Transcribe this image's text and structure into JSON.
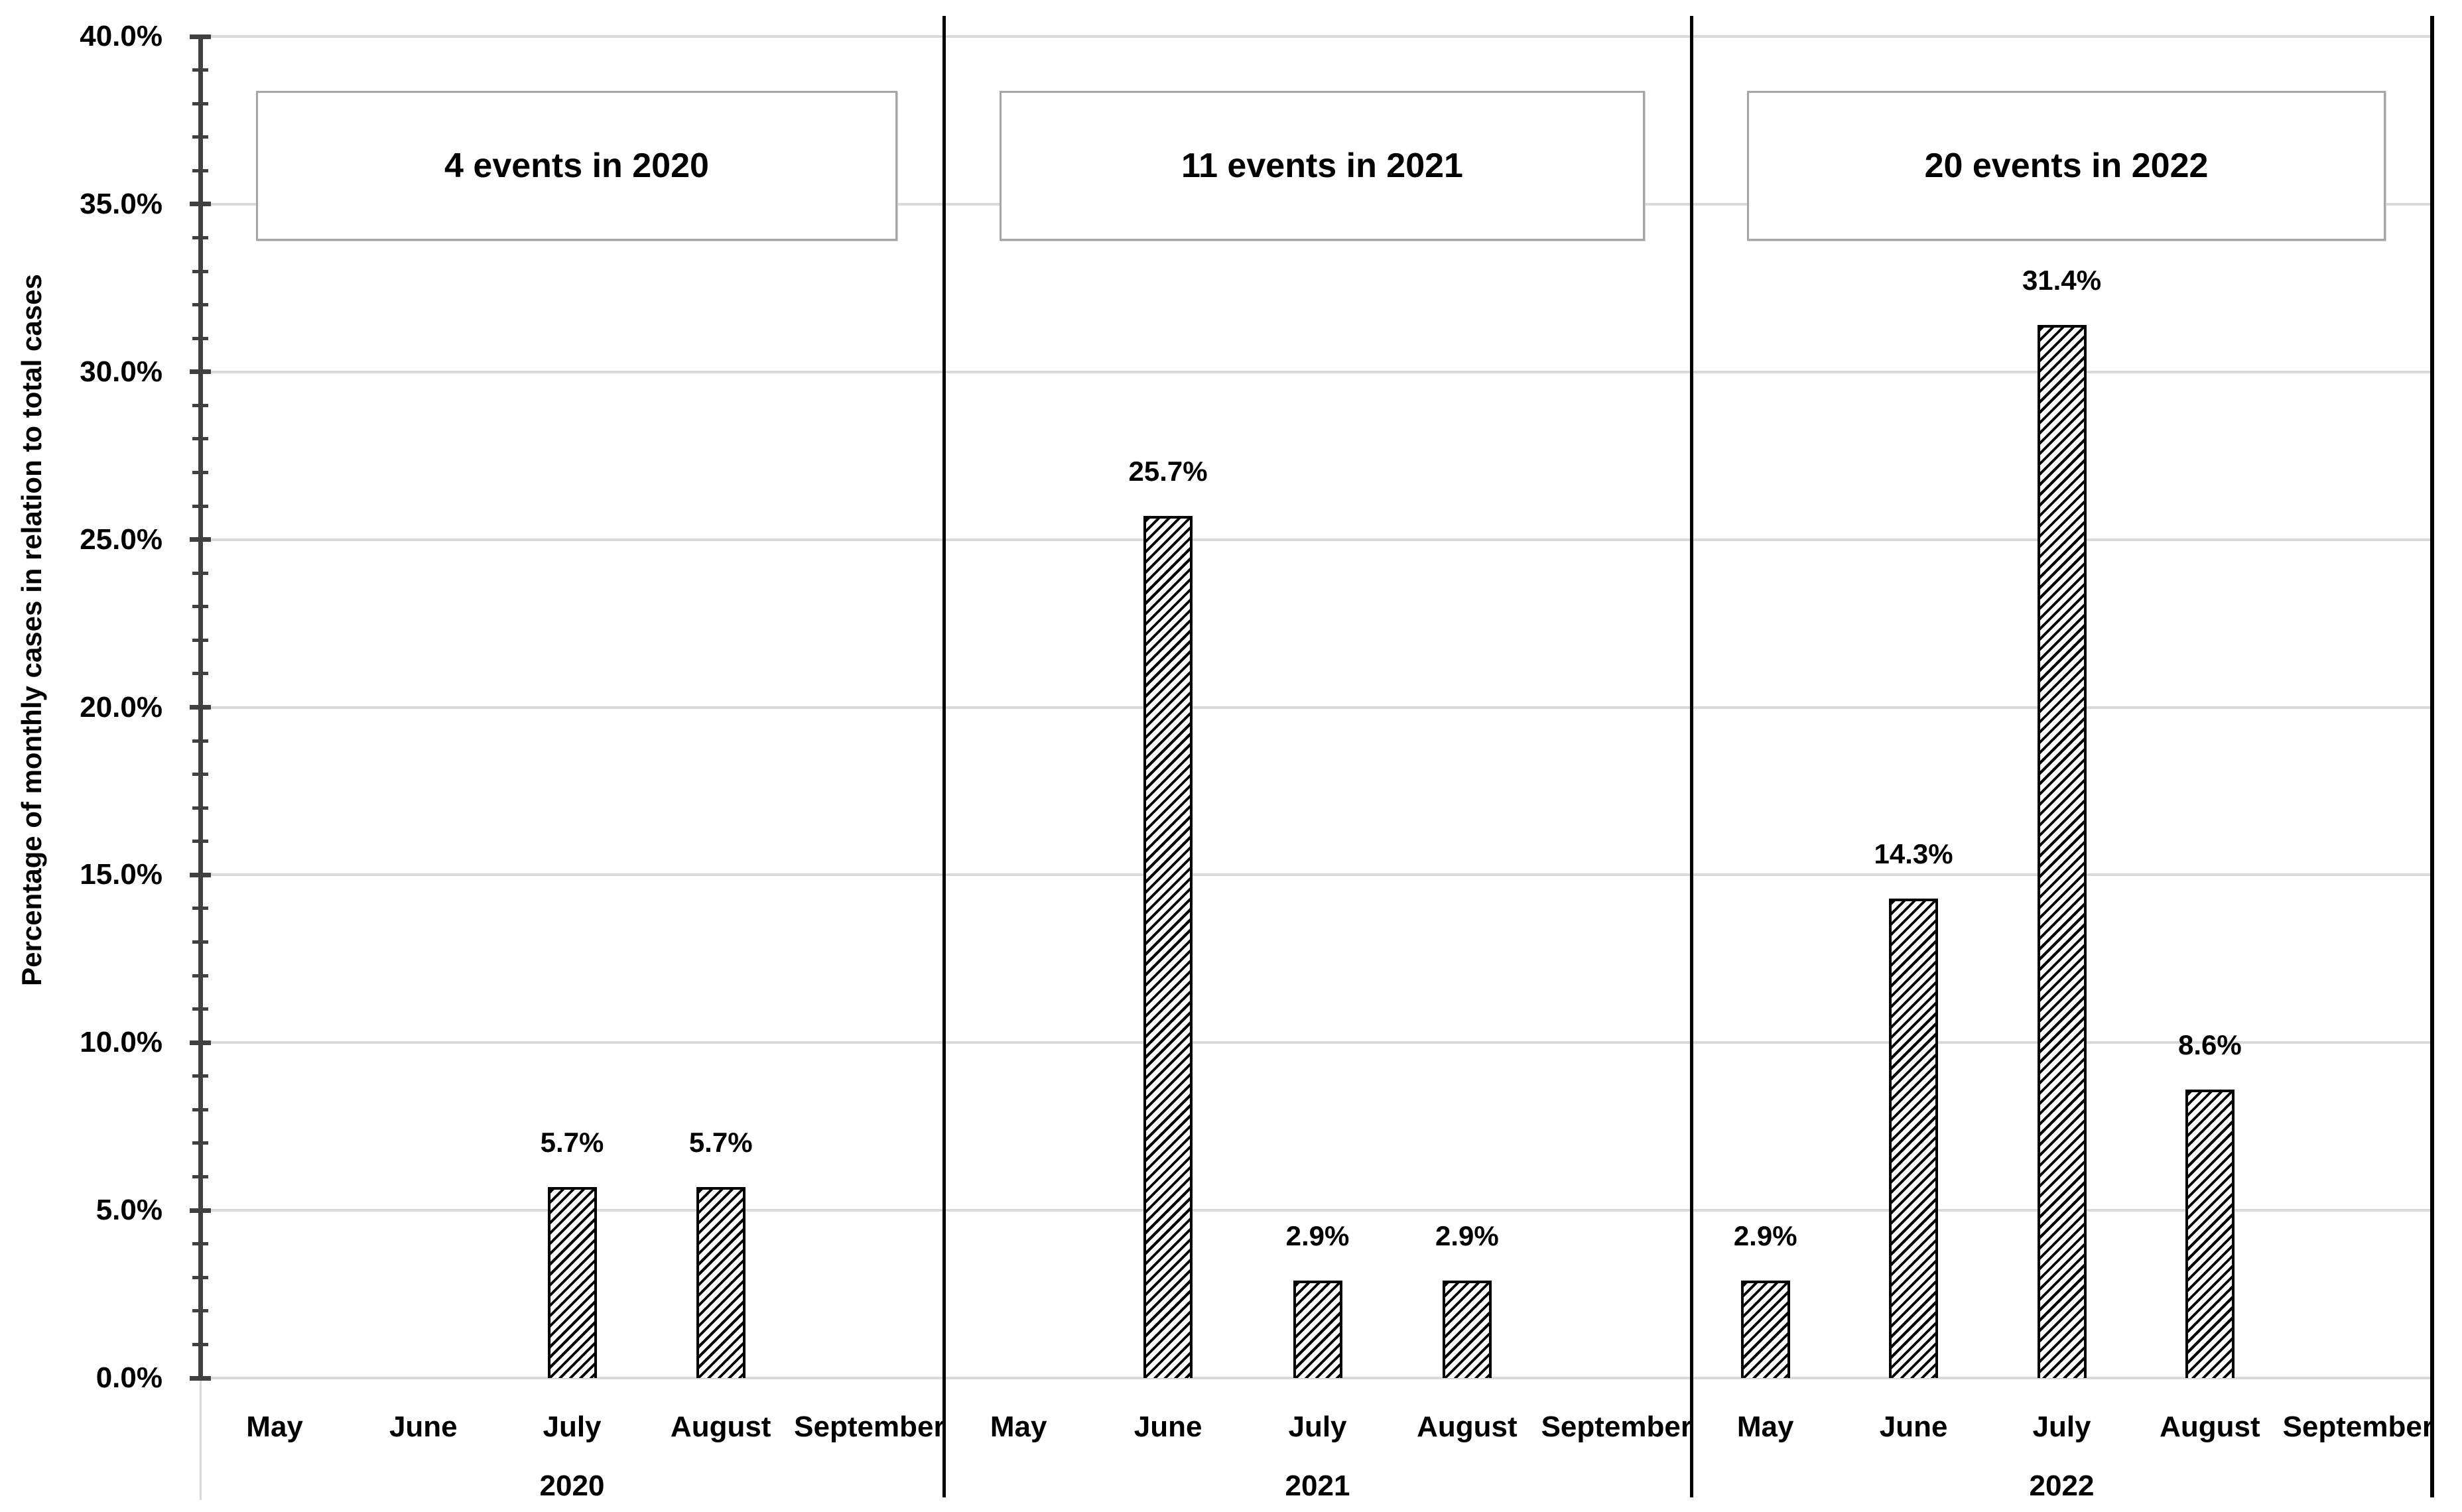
{
  "chart_data": {
    "type": "bar",
    "title": "",
    "xlabel": "",
    "ylabel": "Percentage of monthly cases in relation to total cases",
    "ylim": [
      0,
      40
    ],
    "y_major_step_pct": 5,
    "y_minor_step_pct": 1,
    "y_tick_labels": [
      "0.0%",
      "5.0%",
      "10.0%",
      "15.0%",
      "20.0%",
      "25.0%",
      "30.0%",
      "35.0%",
      "40.0%"
    ],
    "categories": [
      "May",
      "June",
      "July",
      "August",
      "September"
    ],
    "series": [
      {
        "name": "2020",
        "annotation": "4 events in 2020",
        "values": [
          0,
          0,
          5.7,
          5.7,
          0
        ],
        "data_labels": [
          "",
          "",
          "5.7%",
          "5.7%",
          ""
        ]
      },
      {
        "name": "2021",
        "annotation": "11 events in 2021",
        "values": [
          0,
          25.7,
          2.9,
          2.9,
          0
        ],
        "data_labels": [
          "",
          "25.7%",
          "2.9%",
          "2.9%",
          ""
        ]
      },
      {
        "name": "2022",
        "annotation": "20 events in 2022",
        "values": [
          2.9,
          14.3,
          31.4,
          8.6,
          0
        ],
        "data_labels": [
          "2.9%",
          "14.3%",
          "31.4%",
          "8.6%",
          ""
        ]
      }
    ],
    "grid": "horizontal-major",
    "legend": "none",
    "bar_pattern": "black-diagonal-hatch",
    "layout": "three-year-panels-side-by-side",
    "colors": {
      "bar_hatch": "#000000",
      "bar_background": "#ffffff",
      "gridline": "#d9d9d9",
      "axis": "#404040",
      "panel_separator": "#000000",
      "annotation_border": "#a6a6a6",
      "text": "#000000"
    }
  }
}
